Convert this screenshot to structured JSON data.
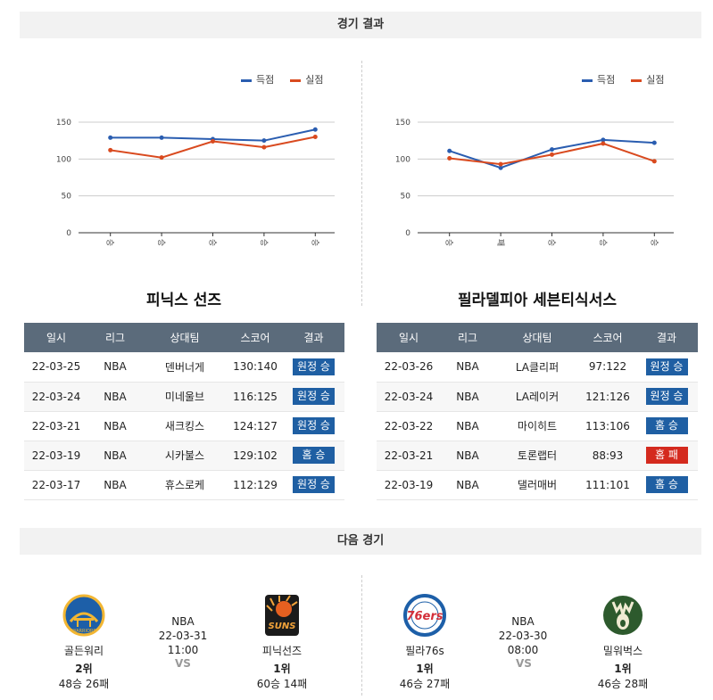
{
  "sections": {
    "results_title": "경기 결과",
    "next_title": "다음 경기"
  },
  "legend": {
    "scored": "득점",
    "conceded": "실점",
    "scored_color": "#2a5db0",
    "conceded_color": "#d94a1f"
  },
  "charts": {
    "left": {
      "y_ticks": [
        "150",
        "100",
        "50",
        "0"
      ],
      "x_labels": [
        "승",
        "승",
        "승",
        "승",
        "승"
      ],
      "scored": [
        129,
        129,
        127,
        125,
        140
      ],
      "conceded": [
        112,
        102,
        124,
        116,
        130
      ]
    },
    "right": {
      "y_ticks": [
        "150",
        "100",
        "50",
        "0"
      ],
      "x_labels": [
        "승",
        "패",
        "승",
        "승",
        "승"
      ],
      "scored": [
        111,
        88,
        113,
        126,
        122
      ],
      "conceded": [
        101,
        93,
        106,
        121,
        97
      ]
    }
  },
  "chart_data": [
    {
      "type": "line",
      "categories": [
        "승",
        "승",
        "승",
        "승",
        "승"
      ],
      "series": [
        {
          "name": "득점",
          "values": [
            129,
            129,
            127,
            125,
            140
          ]
        },
        {
          "name": "실점",
          "values": [
            112,
            102,
            124,
            116,
            130
          ]
        }
      ],
      "ylim": [
        0,
        150
      ],
      "yticks": [
        0,
        50,
        100,
        150
      ],
      "grid": true,
      "legend": "top-right"
    },
    {
      "type": "line",
      "categories": [
        "승",
        "패",
        "승",
        "승",
        "승"
      ],
      "series": [
        {
          "name": "득점",
          "values": [
            111,
            88,
            113,
            126,
            122
          ]
        },
        {
          "name": "실점",
          "values": [
            101,
            93,
            106,
            121,
            97
          ]
        }
      ],
      "ylim": [
        0,
        150
      ],
      "yticks": [
        0,
        50,
        100,
        150
      ],
      "grid": true,
      "legend": "top-right"
    }
  ],
  "left_team": {
    "name": "피닉스 선즈",
    "headers": [
      "일시",
      "리그",
      "상대팀",
      "스코어",
      "결과"
    ],
    "rows": [
      {
        "date": "22-03-25",
        "league": "NBA",
        "opponent": "덴버너게",
        "score": "130:140",
        "result": "원정 승",
        "loss": false
      },
      {
        "date": "22-03-24",
        "league": "NBA",
        "opponent": "미네울브",
        "score": "116:125",
        "result": "원정 승",
        "loss": false
      },
      {
        "date": "22-03-21",
        "league": "NBA",
        "opponent": "새크킹스",
        "score": "124:127",
        "result": "원정 승",
        "loss": false
      },
      {
        "date": "22-03-19",
        "league": "NBA",
        "opponent": "시카불스",
        "score": "129:102",
        "result": "홈 승",
        "loss": false
      },
      {
        "date": "22-03-17",
        "league": "NBA",
        "opponent": "휴스로케",
        "score": "112:129",
        "result": "원정 승",
        "loss": false
      }
    ]
  },
  "right_team": {
    "name": "필라델피아 세븐티식서스",
    "headers": [
      "일시",
      "리그",
      "상대팀",
      "스코어",
      "결과"
    ],
    "rows": [
      {
        "date": "22-03-26",
        "league": "NBA",
        "opponent": "LA클리퍼",
        "score": "97:122",
        "result": "원정 승",
        "loss": false
      },
      {
        "date": "22-03-24",
        "league": "NBA",
        "opponent": "LA레이커",
        "score": "121:126",
        "result": "원정 승",
        "loss": false
      },
      {
        "date": "22-03-22",
        "league": "NBA",
        "opponent": "마이히트",
        "score": "113:106",
        "result": "홈 승",
        "loss": false
      },
      {
        "date": "22-03-21",
        "league": "NBA",
        "opponent": "토론랩터",
        "score": "88:93",
        "result": "홈 패",
        "loss": true
      },
      {
        "date": "22-03-19",
        "league": "NBA",
        "opponent": "댈러매버",
        "score": "111:101",
        "result": "홈 승",
        "loss": false
      }
    ]
  },
  "next_games": {
    "left": {
      "home": {
        "name": "골든워리",
        "rank": "2위",
        "record": "48승 26패"
      },
      "league": "NBA",
      "datetime": "22-03-31 11:00",
      "vs": "VS",
      "away": {
        "name": "피닉선즈",
        "rank": "1위",
        "record": "60승 14패"
      }
    },
    "right": {
      "home": {
        "name": "필라76s",
        "rank": "1위",
        "record": "46승 27패"
      },
      "league": "NBA",
      "datetime": "22-03-30 08:00",
      "vs": "VS",
      "away": {
        "name": "밀워벅스",
        "rank": "1위",
        "record": "46승 28패"
      }
    }
  },
  "logos": {
    "warriors_text": "WARRIORS",
    "suns_text": "SUNS",
    "sixers_text": "76ers"
  }
}
